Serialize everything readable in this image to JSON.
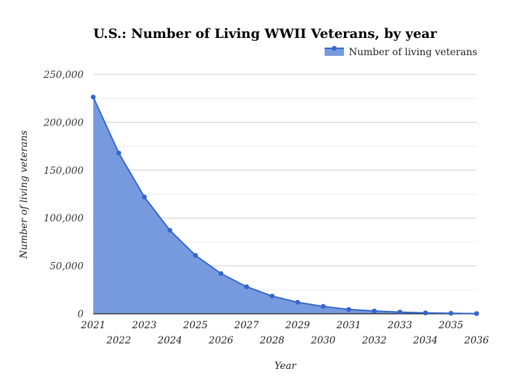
{
  "chart_data": {
    "type": "area",
    "title": "U.S.: Number of Living WWII Veterans, by year",
    "xlabel": "Year",
    "ylabel": "Number of living veterans",
    "legend": {
      "position": "top-right",
      "entries": [
        "Number of living veterans"
      ]
    },
    "grid": true,
    "ylim": [
      0,
      250000
    ],
    "y_ticks": [
      "0",
      "50,000",
      "100,000",
      "150,000",
      "200,000",
      "250,000"
    ],
    "y_tick_values": [
      0,
      50000,
      100000,
      150000,
      200000,
      250000
    ],
    "categories": [
      "2021",
      "2022",
      "2023",
      "2024",
      "2025",
      "2026",
      "2027",
      "2028",
      "2029",
      "2030",
      "2031",
      "2032",
      "2033",
      "2034",
      "2035",
      "2036"
    ],
    "series": [
      {
        "name": "Number of living veterans",
        "values": [
          226400,
          167900,
          122000,
          87200,
          61000,
          42000,
          28300,
          18500,
          12000,
          7700,
          4500,
          2900,
          1700,
          900,
          500,
          200
        ]
      }
    ],
    "colors": {
      "line": "#3366cc",
      "fill": "#7799dd",
      "grid": "#cccccc",
      "minor_grid": "#ebebeb"
    }
  }
}
